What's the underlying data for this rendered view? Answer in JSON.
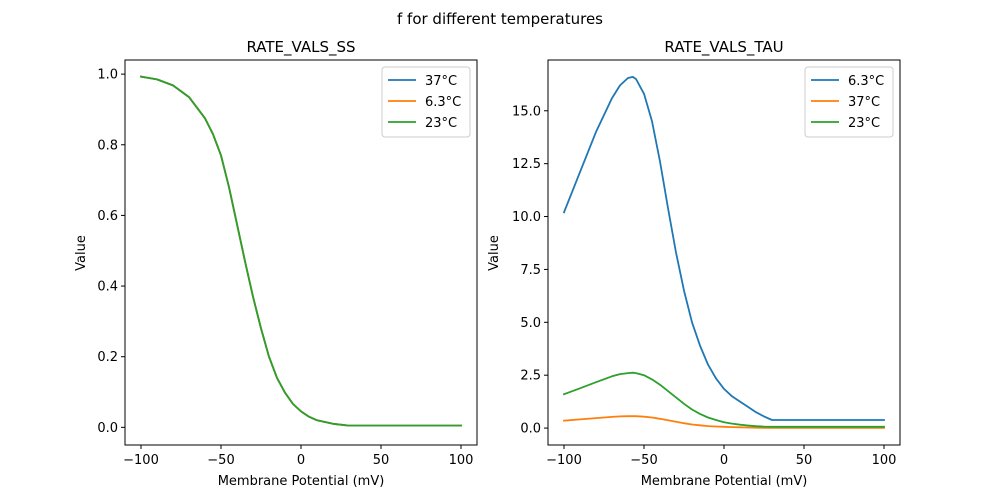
{
  "figure": {
    "suptitle": "f for different temperatures"
  },
  "colors": {
    "blue": "#1f77b4",
    "orange": "#ff7f0e",
    "green": "#2ca02c"
  },
  "chart_data": [
    {
      "type": "line",
      "title": "RATE_VALS_SS",
      "xlabel": "Membrane Potential (mV)",
      "ylabel": "Value",
      "xlim": [
        -110,
        110
      ],
      "ylim": [
        -0.05,
        1.04
      ],
      "xticks": [
        -100,
        -50,
        0,
        50,
        100
      ],
      "xtick_labels": [
        "−100",
        "−50",
        "0",
        "50",
        "100"
      ],
      "yticks": [
        0.0,
        0.2,
        0.4,
        0.6,
        0.8,
        1.0
      ],
      "ytick_labels": [
        "0.0",
        "0.2",
        "0.4",
        "0.6",
        "0.8",
        "1.0"
      ],
      "legend_position": "top-right",
      "grid": false,
      "x": [
        -100,
        -90,
        -80,
        -70,
        -60,
        -55,
        -50,
        -45,
        -40,
        -35,
        -30,
        -25,
        -20,
        -15,
        -10,
        -5,
        0,
        5,
        10,
        20,
        30,
        40,
        50,
        60,
        70,
        80,
        90,
        100
      ],
      "series": [
        {
          "name": "37°C",
          "color": "#1f77b4",
          "values": [
            0.993,
            0.985,
            0.968,
            0.935,
            0.875,
            0.83,
            0.77,
            0.68,
            0.575,
            0.47,
            0.37,
            0.28,
            0.2,
            0.14,
            0.098,
            0.066,
            0.045,
            0.03,
            0.02,
            0.01,
            0.005,
            0.005,
            0.005,
            0.005,
            0.005,
            0.005,
            0.005,
            0.005
          ]
        },
        {
          "name": "6.3°C",
          "color": "#ff7f0e",
          "values": [
            0.993,
            0.985,
            0.968,
            0.935,
            0.875,
            0.83,
            0.77,
            0.68,
            0.575,
            0.47,
            0.37,
            0.28,
            0.2,
            0.14,
            0.098,
            0.066,
            0.045,
            0.03,
            0.02,
            0.01,
            0.005,
            0.005,
            0.005,
            0.005,
            0.005,
            0.005,
            0.005,
            0.005
          ]
        },
        {
          "name": "23°C",
          "color": "#2ca02c",
          "values": [
            0.993,
            0.985,
            0.968,
            0.935,
            0.875,
            0.83,
            0.77,
            0.68,
            0.575,
            0.47,
            0.37,
            0.28,
            0.2,
            0.14,
            0.098,
            0.066,
            0.045,
            0.03,
            0.02,
            0.01,
            0.005,
            0.005,
            0.005,
            0.005,
            0.005,
            0.005,
            0.005,
            0.005
          ]
        }
      ]
    },
    {
      "type": "line",
      "title": "RATE_VALS_TAU",
      "xlabel": "Membrane Potential (mV)",
      "ylabel": "Value",
      "xlim": [
        -110,
        110
      ],
      "ylim": [
        -0.8,
        17.4
      ],
      "xticks": [
        -100,
        -50,
        0,
        50,
        100
      ],
      "xtick_labels": [
        "−100",
        "−50",
        "0",
        "50",
        "100"
      ],
      "yticks": [
        0.0,
        2.5,
        5.0,
        7.5,
        10.0,
        12.5,
        15.0
      ],
      "ytick_labels": [
        "0.0",
        "2.5",
        "5.0",
        "7.5",
        "10.0",
        "12.5",
        "15.0"
      ],
      "legend_position": "top-right",
      "grid": false,
      "x": [
        -100,
        -90,
        -80,
        -70,
        -65,
        -60,
        -57,
        -55,
        -50,
        -45,
        -40,
        -35,
        -30,
        -25,
        -20,
        -15,
        -10,
        -5,
        0,
        5,
        10,
        15,
        20,
        25,
        30,
        40,
        50,
        60,
        70,
        80,
        90,
        100
      ],
      "series": [
        {
          "name": "6.3°C",
          "color": "#1f77b4",
          "values": [
            10.2,
            12.1,
            14.0,
            15.6,
            16.2,
            16.55,
            16.6,
            16.5,
            15.8,
            14.5,
            12.6,
            10.4,
            8.3,
            6.5,
            5.0,
            3.9,
            3.0,
            2.35,
            1.85,
            1.5,
            1.25,
            1.0,
            0.75,
            0.55,
            0.38,
            0.38,
            0.38,
            0.38,
            0.38,
            0.38,
            0.38,
            0.38
          ]
        },
        {
          "name": "37°C",
          "color": "#ff7f0e",
          "values": [
            0.35,
            0.41,
            0.47,
            0.53,
            0.55,
            0.56,
            0.56,
            0.56,
            0.54,
            0.5,
            0.44,
            0.37,
            0.3,
            0.23,
            0.17,
            0.13,
            0.095,
            0.075,
            0.06,
            0.045,
            0.035,
            0.025,
            0.02,
            0.015,
            0.01,
            0.01,
            0.01,
            0.01,
            0.01,
            0.01,
            0.01,
            0.01
          ]
        },
        {
          "name": "23°C",
          "color": "#2ca02c",
          "values": [
            1.6,
            1.88,
            2.17,
            2.45,
            2.55,
            2.6,
            2.62,
            2.6,
            2.5,
            2.3,
            2.05,
            1.75,
            1.45,
            1.15,
            0.88,
            0.67,
            0.5,
            0.38,
            0.28,
            0.21,
            0.16,
            0.12,
            0.09,
            0.07,
            0.06,
            0.06,
            0.06,
            0.06,
            0.06,
            0.06,
            0.06,
            0.06
          ]
        }
      ]
    }
  ]
}
